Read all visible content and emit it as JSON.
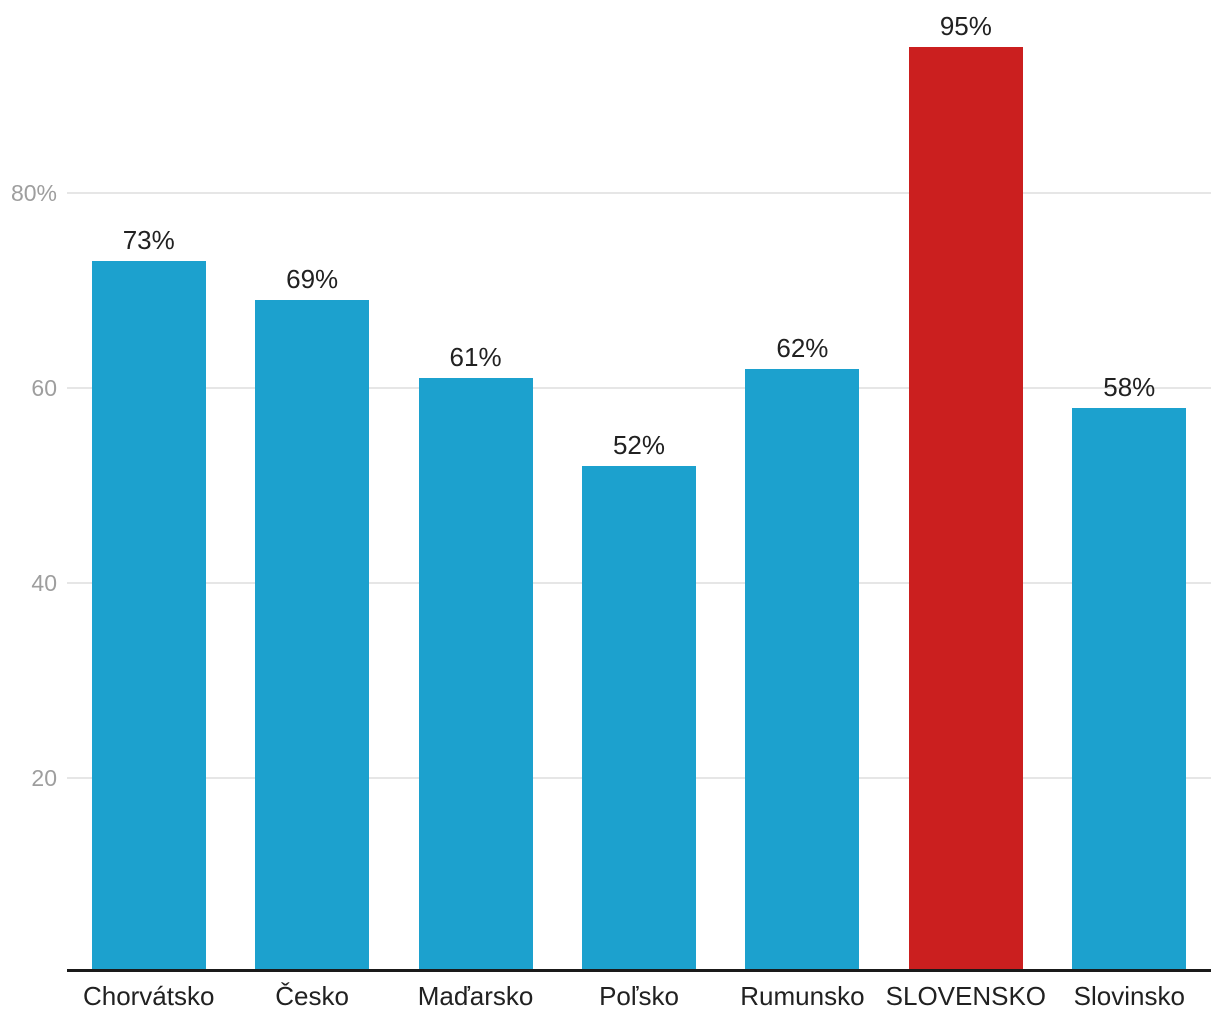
{
  "chart_data": {
    "type": "bar",
    "title": "",
    "xlabel": "",
    "ylabel": "",
    "categories": [
      "Chorvátsko",
      "Česko",
      "Maďarsko",
      "Poľsko",
      "Rumunsko",
      "SLOVENSKO",
      "Slovinsko"
    ],
    "values": [
      73,
      69,
      61,
      52,
      62,
      95,
      58
    ],
    "value_labels": [
      "73%",
      "69%",
      "61%",
      "52%",
      "62%",
      "95%",
      "58%"
    ],
    "highlight_index": 5,
    "highlight_category": "SLOVENSKO",
    "ylim": [
      0,
      100
    ],
    "yticks": [
      {
        "value": 80,
        "label": "80%"
      },
      {
        "value": 60,
        "label": "60"
      },
      {
        "value": 40,
        "label": "40"
      },
      {
        "value": 20,
        "label": "20"
      }
    ],
    "grid": true,
    "legend": false,
    "colors": {
      "bar": "#1CA1CE",
      "highlight_bar": "#CB1F1F",
      "value_label": "#212121",
      "category_label": "#212121",
      "tick_label": "#9E9E9E",
      "gridline": "#E6E6E6",
      "axis_line": "#1A1A1A",
      "background": "#FFFFFF"
    }
  }
}
